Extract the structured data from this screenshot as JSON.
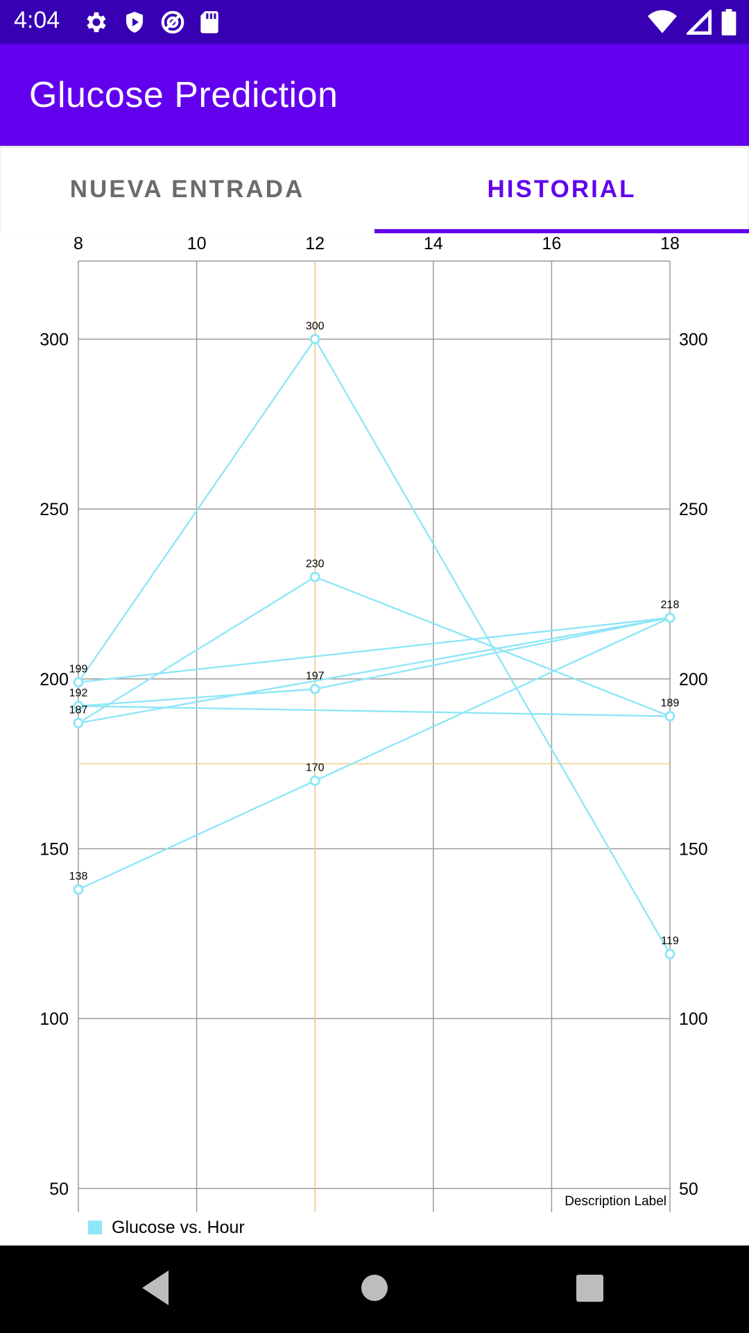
{
  "status_bar": {
    "time": "4:04",
    "icons_left": [
      "gear-icon",
      "play-protect-icon",
      "data-saver-icon",
      "sd-card-icon"
    ],
    "icons_right": [
      "wifi-icon",
      "signal-icon",
      "battery-icon"
    ]
  },
  "app_bar": {
    "title": "Glucose Prediction",
    "color": "#6200ee"
  },
  "tabs": [
    {
      "label": "NUEVA ENTRADA",
      "selected": false
    },
    {
      "label": "HISTORIAL",
      "selected": true
    }
  ],
  "chart_data": {
    "type": "line",
    "x_ticks": [
      8,
      10,
      12,
      14,
      16,
      18
    ],
    "y_ticks": [
      50,
      100,
      150,
      200,
      250,
      300
    ],
    "xlim": [
      8,
      18
    ],
    "ylim": [
      43,
      323
    ],
    "grid": true,
    "line_color": "#8fe6f7",
    "highlight_color": "#f5c98a",
    "highlight": {
      "x": 12,
      "y": 175
    },
    "series": [
      {
        "points": [
          [
            8,
            199
          ],
          [
            12,
            300
          ],
          [
            18,
            119
          ]
        ]
      },
      {
        "points": [
          [
            8,
            187
          ],
          [
            12,
            230
          ],
          [
            18,
            189
          ]
        ]
      },
      {
        "points": [
          [
            8,
            192
          ],
          [
            12,
            197
          ],
          [
            18,
            218
          ]
        ]
      },
      {
        "points": [
          [
            8,
            138
          ],
          [
            12,
            170
          ],
          [
            18,
            218
          ]
        ]
      },
      {
        "points": [
          [
            8,
            199
          ],
          [
            18,
            218
          ]
        ]
      },
      {
        "points": [
          [
            8,
            187
          ],
          [
            18,
            218
          ]
        ]
      },
      {
        "points": [
          [
            8,
            192
          ],
          [
            18,
            189
          ]
        ]
      }
    ],
    "value_labels": [
      {
        "x": 8,
        "y": 199,
        "text": "199"
      },
      {
        "x": 8,
        "y": 192,
        "text": "192"
      },
      {
        "x": 8,
        "y": 187,
        "text": "187"
      },
      {
        "x": 8,
        "y": 138,
        "text": "138"
      },
      {
        "x": 12,
        "y": 300,
        "text": "300"
      },
      {
        "x": 12,
        "y": 230,
        "text": "230"
      },
      {
        "x": 12,
        "y": 197,
        "text": "197"
      },
      {
        "x": 12,
        "y": 170,
        "text": "170"
      },
      {
        "x": 18,
        "y": 218,
        "text": "218"
      },
      {
        "x": 18,
        "y": 189,
        "text": "189"
      },
      {
        "x": 18,
        "y": 119,
        "text": "119"
      }
    ],
    "description": "Description Label",
    "legend": {
      "label": "Glucose vs. Hour",
      "position": "bottom-left"
    }
  },
  "nav_bar": {
    "icons": [
      "back-icon",
      "home-icon",
      "recents-icon"
    ]
  }
}
